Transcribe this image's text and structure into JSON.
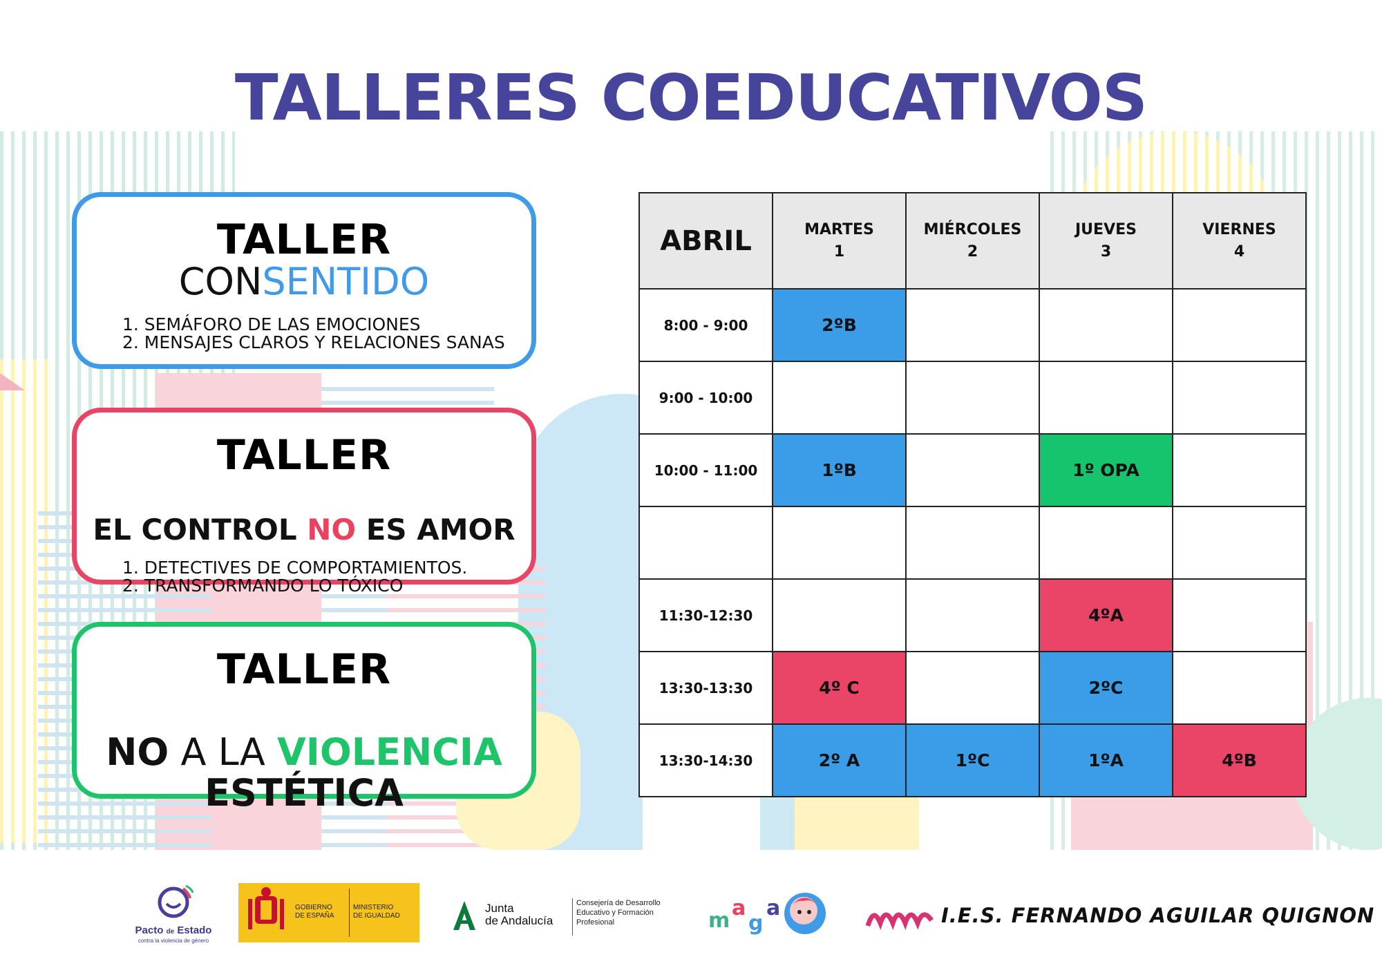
{
  "title": "TALLERES COEDUCATIVOS",
  "workshops": [
    {
      "heading": "TALLER",
      "name_part1": "CON",
      "name_part2": "SENTIDO",
      "items": [
        "1. SEMÁFORO DE LAS EMOCIONES",
        "2. MENSAJES CLAROS Y RELACIONES SANAS"
      ]
    },
    {
      "heading": "TALLER",
      "name_part1": "EL CONTROL ",
      "name_part2": "NO",
      "name_part3": " ES AMOR",
      "items": [
        "1. DETECTIVES DE COMPORTAMIENTOS.",
        "2. TRANSFORMANDO LO TÓXICO"
      ]
    },
    {
      "heading": "TALLER",
      "name_part1": "NO",
      "name_part2": " A LA ",
      "name_part3": "VIOLENCIA",
      "name_part4": "ESTÉTICA"
    }
  ],
  "schedule": {
    "corner": "ABRIL",
    "days": [
      {
        "name": "MARTES",
        "num": "1"
      },
      {
        "name": "MIÉRCOLES",
        "num": "2"
      },
      {
        "name": "JUEVES",
        "num": "3"
      },
      {
        "name": "VIERNES",
        "num": "4"
      }
    ],
    "rows": [
      {
        "time": "8:00 - 9:00",
        "cells": [
          "2ºB",
          "",
          "",
          ""
        ]
      },
      {
        "time": "9:00 - 10:00",
        "cells": [
          "",
          "",
          "",
          ""
        ]
      },
      {
        "time": "10:00 - 11:00",
        "cells": [
          "1ºB",
          "",
          "1º OPA",
          ""
        ]
      },
      {
        "time": "",
        "cells": [
          "",
          "",
          "",
          ""
        ]
      },
      {
        "time": "11:30-12:30",
        "cells": [
          "",
          "",
          "4ºA",
          ""
        ]
      },
      {
        "time": "13:30-13:30",
        "cells": [
          "4º C",
          "",
          "2ºC",
          ""
        ]
      },
      {
        "time": "13:30-14:30",
        "cells": [
          "2º A",
          "1ºC",
          "1ºA",
          "4ºB"
        ]
      }
    ],
    "cell_colors": {
      "blue": "#3b9ce8",
      "red": "#ea4466",
      "green": "#17c46e"
    }
  },
  "logos": {
    "pacto": {
      "line1": "Pacto",
      "line1b": "de",
      "line1c": "Estado",
      "line2": "contra la violencia de género"
    },
    "gobierno": {
      "left": "GOBIERNO\nDE ESPAÑA",
      "right": "MINISTERIO\nDE IGUALDAD"
    },
    "junta": {
      "name1": "Junta",
      "name2": "de Andalucía",
      "dept1": "Consejería de Desarrollo",
      "dept2": "Educativo y Formación",
      "dept3": "Profesional"
    },
    "ies": "I.E.S. FERNANDO AGUILAR QUIGNON"
  },
  "colors": {
    "title": "#47449c",
    "blue": "#3f9ae8",
    "red": "#e8425f",
    "green": "#1ec46a"
  }
}
